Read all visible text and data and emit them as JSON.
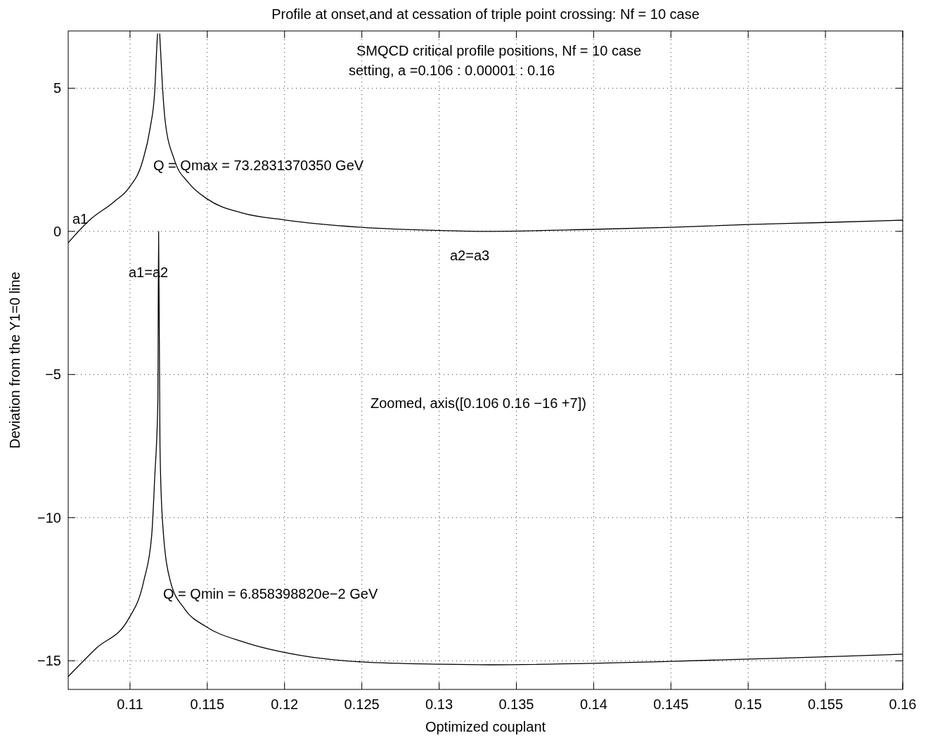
{
  "chart_data": {
    "type": "line",
    "title": "Profile at onset,and at cessation of triple point crossing: Nf = 10 case",
    "xlabel": "Optimized couplant",
    "ylabel": "Deviation from the Y1=0 line",
    "series": [
      {
        "color": "#000000",
        "x": [
          0.106,
          0.1074,
          0.10896,
          0.1099,
          0.1108,
          0.1113,
          0.1116,
          0.11173,
          0.11178,
          0.1118,
          0.11192,
          0.1121,
          0.11228,
          0.11287,
          0.11378,
          0.115,
          0.11728,
          0.12,
          0.125,
          0.13,
          0.1332,
          0.14,
          0.145,
          0.15,
          0.155,
          0.16
        ],
        "values": [
          -0.4,
          0.4,
          1.03,
          1.5,
          2.43,
          3.6,
          4.9,
          6.4,
          6.9,
          null,
          6.9,
          5.06,
          3.83,
          2.5,
          1.7,
          1.13,
          0.64,
          0.4,
          0.14,
          0.03,
          0,
          0.07,
          0.14,
          0.24,
          0.31,
          0.39
        ]
      },
      {
        "color": "#000000",
        "x": [
          0.106,
          0.1078,
          0.1099,
          0.1109,
          0.1114,
          0.1116,
          0.1118,
          0.11185,
          0.11194,
          0.1121,
          0.1126,
          0.11355,
          0.1149,
          0.1174,
          0.1209,
          0.125,
          0.13,
          0.1333,
          0.14,
          0.145,
          0.15,
          0.155,
          0.16
        ],
        "values": [
          -15.55,
          -14.57,
          -13.54,
          -12.19,
          -10.64,
          -8.58,
          -5.97,
          0,
          -7.54,
          -10.1,
          -12.2,
          -13.2,
          -13.8,
          -14.35,
          -14.8,
          -15.04,
          -15.12,
          -15.14,
          -15.09,
          -15.02,
          -14.94,
          -14.86,
          -14.77
        ]
      }
    ],
    "xlim": [
      0.106,
      0.16
    ],
    "xticks": [
      0.11,
      0.115,
      0.12,
      0.125,
      0.13,
      0.135,
      0.14,
      0.145,
      0.15,
      0.155,
      0.16
    ],
    "ylim": [
      -16,
      7
    ],
    "yticks": [
      {
        "value": -15,
        "label": "−15"
      },
      {
        "value": -10,
        "label": "−10"
      },
      {
        "value": -5,
        "label": "−5"
      },
      0,
      5
    ],
    "grid": true,
    "line_style": "solid",
    "marker": "none",
    "annotations": [
      "a1",
      "Q = Qmax = 73.2831370350 GeV",
      "a1=a2",
      "a2=a3",
      "Q = Qmin = 6.858398820e−2 GeV",
      "SMQCD critical profile positions, Nf = 10 case",
      "setting, a =0.106 : 0.00001 : 0.16",
      "Zoomed, axis([0.106 0.16 −16 +7])"
    ]
  }
}
